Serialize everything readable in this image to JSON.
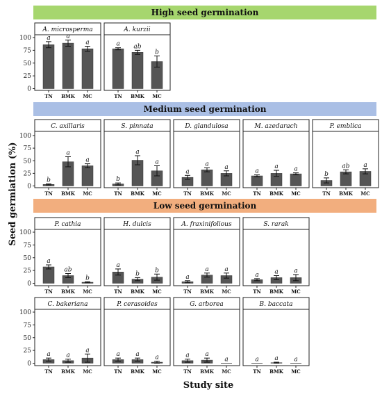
{
  "chart_data": {
    "type": "bar",
    "ylabel": "Seed germiation (%)",
    "xlabel": "Study site",
    "categories": [
      "TN",
      "BMK",
      "MC"
    ],
    "ylim": [
      0,
      100
    ],
    "yticks": [
      0,
      25,
      50,
      75,
      100
    ],
    "groups": [
      {
        "title": "High seed germination",
        "color": "#a6d66e",
        "panels": [
          {
            "species": "A. microsperma",
            "values": [
              86,
              89,
              78
            ],
            "errors": [
              6,
              6,
              5
            ],
            "letters": [
              "a",
              "a",
              "a"
            ]
          },
          {
            "species": "A. kurzii",
            "values": [
              78,
              71,
              53
            ],
            "errors": [
              2,
              4,
              11
            ],
            "letters": [
              "a",
              "ab",
              "b"
            ]
          }
        ]
      },
      {
        "title": "Medium seed germination",
        "color": "#aabfe5",
        "panels": [
          {
            "species": "C. axillaris",
            "values": [
              3,
              48,
              40
            ],
            "errors": [
              1,
              10,
              4
            ],
            "letters": [
              "b",
              "a",
              "a"
            ]
          },
          {
            "species": "S. pinnata",
            "values": [
              4,
              51,
              30
            ],
            "errors": [
              2,
              9,
              10
            ],
            "letters": [
              "b",
              "a",
              "a"
            ]
          },
          {
            "species": "D. glandulosa",
            "values": [
              17,
              32,
              25
            ],
            "errors": [
              4,
              4,
              5
            ],
            "letters": [
              "a",
              "a",
              "a"
            ]
          },
          {
            "species": "M. azedarach",
            "values": [
              20,
              25,
              24
            ],
            "errors": [
              2,
              6,
              2
            ],
            "letters": [
              "a",
              "a",
              "a"
            ]
          },
          {
            "species": "P. emblica",
            "values": [
              11,
              28,
              29
            ],
            "errors": [
              5,
              4,
              5
            ],
            "letters": [
              "b",
              "ab",
              "a"
            ]
          }
        ]
      },
      {
        "title": "Low seed germination",
        "color": "#f2ae7e",
        "panels": [
          {
            "species": "P. cathia",
            "values": [
              32,
              15,
              2
            ],
            "errors": [
              4,
              4,
              1
            ],
            "letters": [
              "a",
              "ab",
              "b"
            ]
          },
          {
            "species": "H. dulcis",
            "values": [
              22,
              8,
              12
            ],
            "errors": [
              6,
              3,
              6
            ],
            "letters": [
              "a",
              "b",
              "b"
            ]
          },
          {
            "species": "A. fraxinifolious",
            "values": [
              3,
              16,
              15
            ],
            "errors": [
              2,
              4,
              5
            ],
            "letters": [
              "a",
              "a",
              "a"
            ]
          },
          {
            "species": "S. rarak",
            "values": [
              7,
              11,
              11
            ],
            "errors": [
              2,
              4,
              6
            ],
            "letters": [
              "a",
              "a",
              "a"
            ]
          }
        ]
      },
      {
        "title": "",
        "color": "",
        "panels": [
          {
            "species": "C. bakeriana",
            "values": [
              7,
              5,
              10
            ],
            "errors": [
              3,
              3,
              8
            ],
            "letters": [
              "a",
              "a",
              "a"
            ]
          },
          {
            "species": "P. cerasoides",
            "values": [
              7,
              7,
              2
            ],
            "errors": [
              3,
              3,
              2
            ],
            "letters": [
              "a",
              "a",
              "a"
            ]
          },
          {
            "species": "G. arborea",
            "values": [
              5,
              6,
              0
            ],
            "errors": [
              3,
              4,
              0
            ],
            "letters": [
              "a",
              "a",
              "a"
            ]
          },
          {
            "species": "B. baccata",
            "values": [
              0,
              1,
              0
            ],
            "errors": [
              0,
              1,
              0
            ],
            "letters": [
              "a",
              "a",
              "a"
            ]
          }
        ]
      }
    ]
  }
}
